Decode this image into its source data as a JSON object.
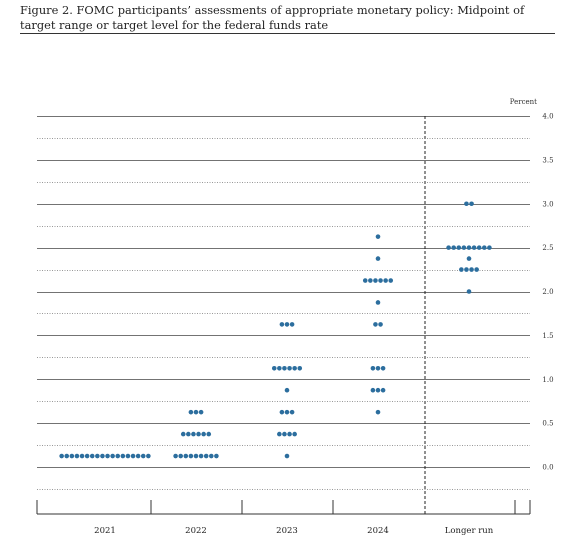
{
  "figure": {
    "caption": "Figure 2.  FOMC participants’ assessments of appropriate monetary policy:  Midpoint of target range or target level for the federal funds rate"
  },
  "chart_data": {
    "type": "scatter",
    "subtype": "dot plot",
    "ylabel": "Percent",
    "ylim": [
      -0.5,
      4.0
    ],
    "gridlines": "dotted every 0.25, solid every 0.5",
    "yticks": [
      "0.0",
      "0.5",
      "1.0",
      "1.5",
      "2.0",
      "2.5",
      "3.0",
      "3.5",
      "4.0"
    ],
    "categories": [
      "2021",
      "2022",
      "2023",
      "2024",
      "Longer run"
    ],
    "dot_color": "#2c6e9e",
    "dots": [
      {
        "x": "2021",
        "y": 0.125,
        "count": 18
      },
      {
        "x": "2022",
        "y": 0.125,
        "count": 9
      },
      {
        "x": "2022",
        "y": 0.375,
        "count": 6
      },
      {
        "x": "2022",
        "y": 0.625,
        "count": 3
      },
      {
        "x": "2023",
        "y": 0.125,
        "count": 1
      },
      {
        "x": "2023",
        "y": 0.375,
        "count": 4
      },
      {
        "x": "2023",
        "y": 0.625,
        "count": 3
      },
      {
        "x": "2023",
        "y": 0.875,
        "count": 1
      },
      {
        "x": "2023",
        "y": 1.125,
        "count": 6
      },
      {
        "x": "2023",
        "y": 1.625,
        "count": 3
      },
      {
        "x": "2024",
        "y": 0.625,
        "count": 1
      },
      {
        "x": "2024",
        "y": 0.875,
        "count": 3
      },
      {
        "x": "2024",
        "y": 1.125,
        "count": 3
      },
      {
        "x": "2024",
        "y": 1.625,
        "count": 2
      },
      {
        "x": "2024",
        "y": 1.875,
        "count": 1
      },
      {
        "x": "2024",
        "y": 2.125,
        "count": 6
      },
      {
        "x": "2024",
        "y": 2.375,
        "count": 1
      },
      {
        "x": "2024",
        "y": 2.625,
        "count": 1
      },
      {
        "x": "Longer run",
        "y": 2.0,
        "count": 1
      },
      {
        "x": "Longer run",
        "y": 2.25,
        "count": 4
      },
      {
        "x": "Longer run",
        "y": 2.375,
        "count": 1
      },
      {
        "x": "Longer run",
        "y": 2.5,
        "count": 9
      },
      {
        "x": "Longer run",
        "y": 3.0,
        "count": 2
      }
    ]
  }
}
